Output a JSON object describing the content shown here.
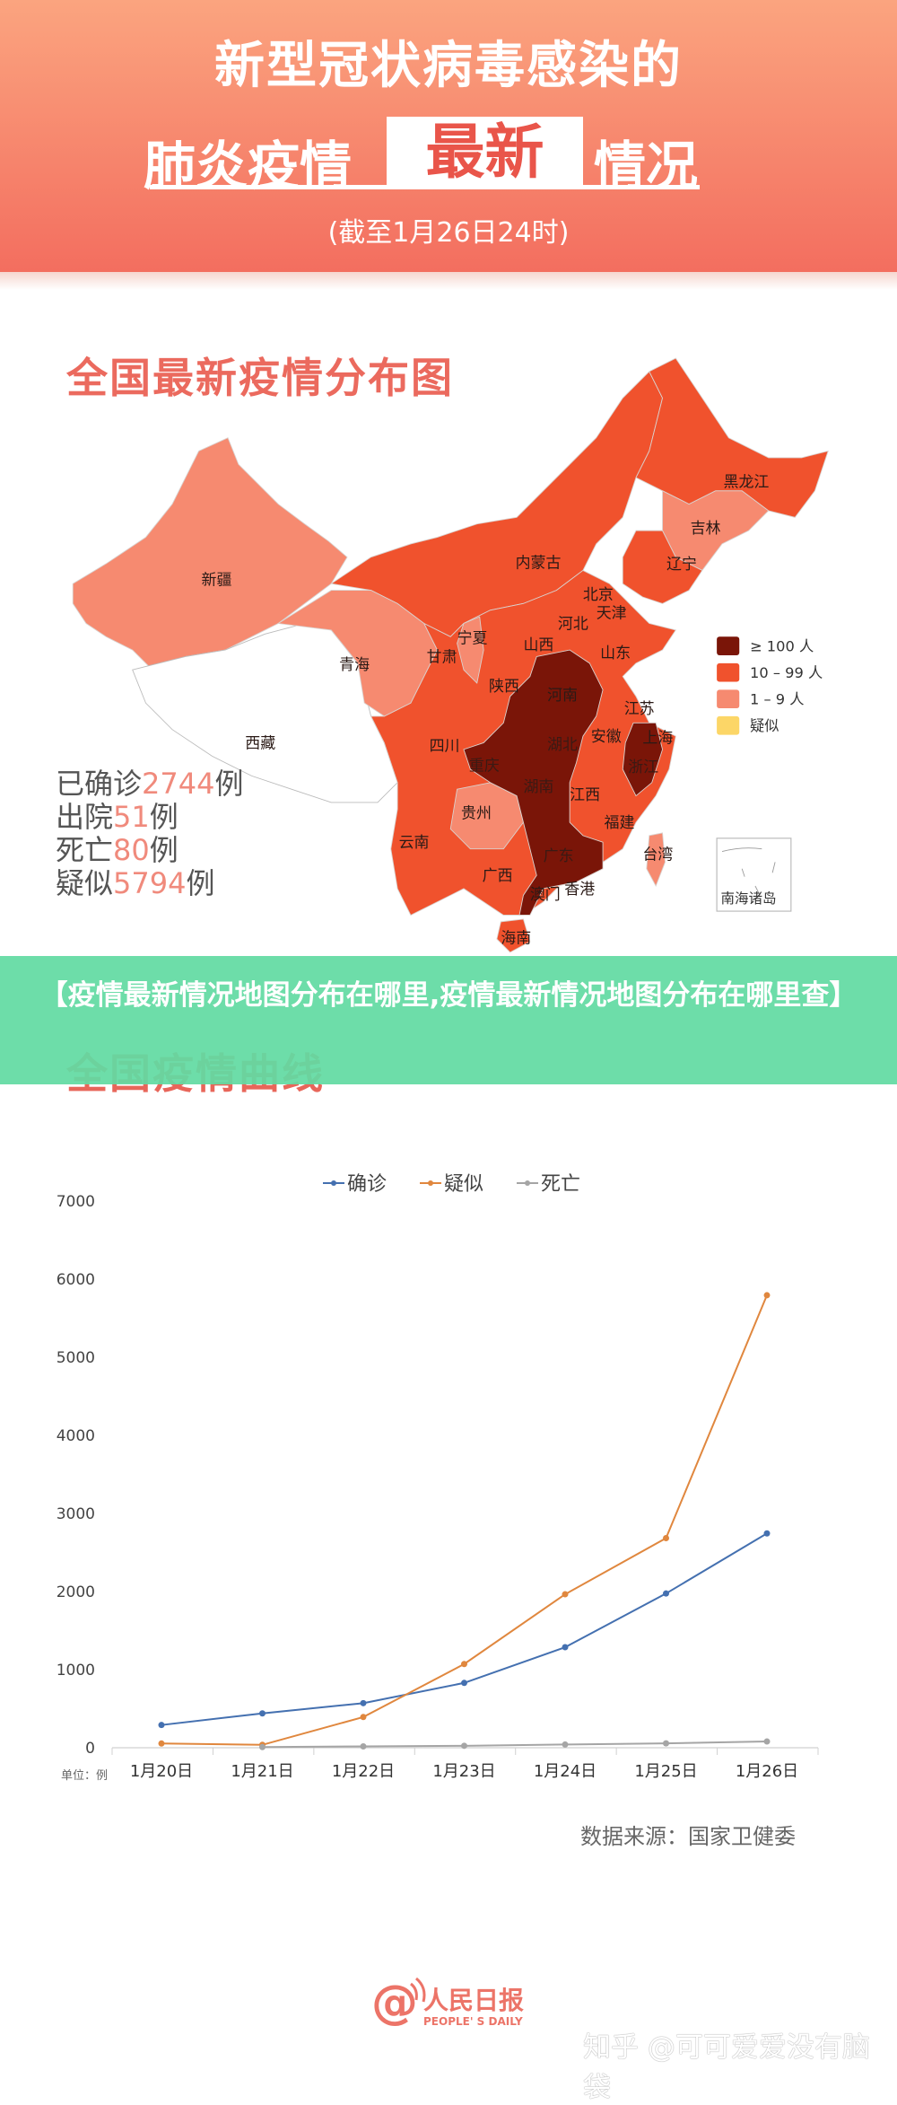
{
  "header": {
    "line1": "新型冠状病毒感染的",
    "line2_left": "肺炎疫情",
    "line2_highlight": "最新",
    "line2_right": "情况",
    "subtitle": "(截至1月26日24时)"
  },
  "map": {
    "title": "全国最新疫情分布图",
    "colors": {
      "ge100": "#7a1508",
      "10to99": "#f0522d",
      "1to9": "#f68a70",
      "suspected": "#fcd667",
      "none": "#ffffff"
    },
    "provinces": {
      "heilongjiang": "黑龙江",
      "jilin": "吉林",
      "liaoning": "辽宁",
      "neimenggu": "内蒙古",
      "beijing": "北京",
      "tianjin": "天津",
      "hebei": "河北",
      "xinjiang": "新疆",
      "ningxia": "宁夏",
      "shanxi": "山西",
      "shandong": "山东",
      "gansu": "甘肃",
      "qinghai": "青海",
      "shaanxi": "陕西",
      "henan": "河南",
      "jiangsu": "江苏",
      "anhui": "安徽",
      "shanghai": "上海",
      "sichuan": "四川",
      "xizang": "西藏",
      "hubei": "湖北",
      "chongqing": "重庆",
      "zhejiang": "浙江",
      "hunan": "湖南",
      "jiangxi": "江西",
      "guizhou": "贵州",
      "fujian": "福建",
      "yunnan": "云南",
      "taiwan": "台湾",
      "guangdong": "广东",
      "guangxi": "广西",
      "xianggang": "香港",
      "aomen": "澳门",
      "hainan": "海南"
    },
    "inset": "南海诸岛",
    "legend": [
      {
        "label": "≥ 100 人",
        "color": "#7a1508"
      },
      {
        "label": "10 – 99 人",
        "color": "#f0522d"
      },
      {
        "label": "1 – 9 人",
        "color": "#f68a70"
      },
      {
        "label": "疑似",
        "color": "#fcd667"
      }
    ],
    "stats": [
      {
        "pre": "已确诊",
        "num": "2744",
        "post": "例"
      },
      {
        "pre": "出院",
        "num": "51",
        "post": "例"
      },
      {
        "pre": "死亡",
        "num": "80",
        "post": "例"
      },
      {
        "pre": "疑似",
        "num": "5794",
        "post": "例"
      }
    ]
  },
  "banner": {
    "text": "【疫情最新情况地图分布在哪里,疫情最新情况地图分布在哪里查】"
  },
  "curve_title": "全国疫情曲线",
  "chart_data": {
    "type": "line",
    "categories": [
      "1月20日",
      "1月21日",
      "1月22日",
      "1月23日",
      "1月24日",
      "1月25日",
      "1月26日"
    ],
    "series": [
      {
        "name": "确诊",
        "color": "#4470b0",
        "values": [
          291,
          440,
          571,
          830,
          1287,
          1975,
          2744
        ]
      },
      {
        "name": "疑似",
        "color": "#e0873e",
        "values": [
          54,
          37,
          393,
          1072,
          1965,
          2684,
          5794
        ]
      },
      {
        "name": "死亡",
        "color": "#a5a5a5",
        "values": [
          null,
          9,
          17,
          25,
          41,
          56,
          80
        ]
      }
    ],
    "ylim": [
      0,
      7000
    ],
    "yticks": [
      "0",
      "1000",
      "2000",
      "3000",
      "4000",
      "5000",
      "6000",
      "7000"
    ],
    "unit_label": "单位：例",
    "grid": false,
    "legend": "top"
  },
  "source": "数据来源：国家卫健委",
  "logo": {
    "text": "人民日报",
    "sub": "PEOPLE' S DAILY"
  },
  "watermark": "知乎 @可可爱爱没有脑袋"
}
